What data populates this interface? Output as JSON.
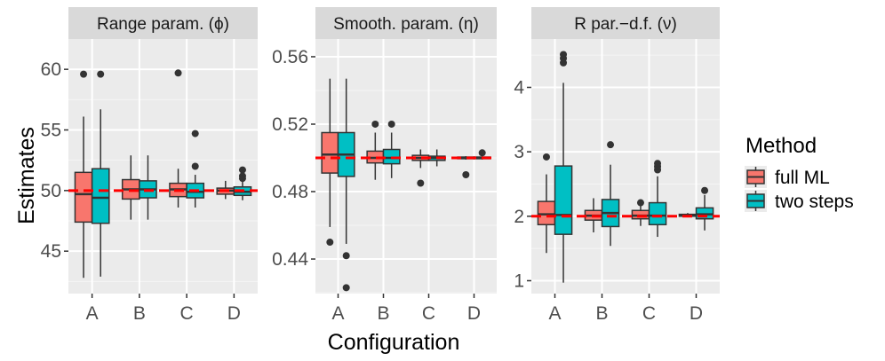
{
  "chart_data": {
    "type": "boxplot",
    "xlabel": "Configuration",
    "ylabel": "Estimates",
    "categories": [
      "A",
      "B",
      "C",
      "D"
    ],
    "legend": {
      "title": "Method",
      "position": "right",
      "entries": [
        {
          "name": "full ML",
          "color": "#F8766D"
        },
        {
          "name": "two steps",
          "color": "#00BFC4"
        }
      ]
    },
    "reference_line_color": "#FF0000",
    "panels": [
      {
        "title": "Range param. (ϕ)",
        "true_value": 50,
        "ylim": [
          41.5,
          62.5
        ],
        "yticks": [
          45,
          50,
          55,
          60
        ],
        "ytick_labels": [
          "45",
          "50",
          "55",
          "60"
        ],
        "series": [
          {
            "name": "full ML",
            "boxes": [
              {
                "cat": "A",
                "q1": 47.4,
                "median": 49.7,
                "q3": 51.5,
                "whisker_low": 42.8,
                "whisker_high": 56.1,
                "outliers": [
                  59.6
                ]
              },
              {
                "cat": "B",
                "q1": 49.3,
                "median": 50.1,
                "q3": 50.9,
                "whisker_low": 47.6,
                "whisker_high": 52.9,
                "outliers": []
              },
              {
                "cat": "C",
                "q1": 49.5,
                "median": 50.1,
                "q3": 50.6,
                "whisker_low": 48.6,
                "whisker_high": 51.8,
                "outliers": [
                  59.7
                ]
              },
              {
                "cat": "D",
                "q1": 49.7,
                "median": 50.0,
                "q3": 50.2,
                "whisker_low": 49.3,
                "whisker_high": 50.8,
                "outliers": []
              }
            ]
          },
          {
            "name": "two steps",
            "boxes": [
              {
                "cat": "A",
                "q1": 47.3,
                "median": 49.4,
                "q3": 51.8,
                "whisker_low": 42.9,
                "whisker_high": 56.7,
                "outliers": [
                  59.6
                ]
              },
              {
                "cat": "B",
                "q1": 49.4,
                "median": 50.1,
                "q3": 50.8,
                "whisker_low": 47.6,
                "whisker_high": 52.9,
                "outliers": []
              },
              {
                "cat": "C",
                "q1": 49.4,
                "median": 49.9,
                "q3": 50.6,
                "whisker_low": 48.6,
                "whisker_high": 51.3,
                "outliers": [
                  54.7,
                  52.0
                ]
              },
              {
                "cat": "D",
                "q1": 49.6,
                "median": 49.9,
                "q3": 50.3,
                "whisker_low": 49.2,
                "whisker_high": 50.8,
                "outliers": [
                  51.7,
                  51.2,
                  51.0
                ]
              }
            ]
          }
        ]
      },
      {
        "title": "Smooth. param. (η)",
        "true_value": 0.5,
        "ylim": [
          0.4195,
          0.5705
        ],
        "yticks": [
          0.44,
          0.48,
          0.52,
          0.56
        ],
        "ytick_labels": [
          "0.44",
          "0.48",
          "0.52",
          "0.56"
        ],
        "series": [
          {
            "name": "full ML",
            "boxes": [
              {
                "cat": "A",
                "q1": 0.491,
                "median": 0.502,
                "q3": 0.515,
                "whisker_low": 0.459,
                "whisker_high": 0.547,
                "outliers": [
                  0.45
                ]
              },
              {
                "cat": "B",
                "q1": 0.497,
                "median": 0.5,
                "q3": 0.504,
                "whisker_low": 0.487,
                "whisker_high": 0.515,
                "outliers": [
                  0.52
                ]
              },
              {
                "cat": "C",
                "q1": 0.4985,
                "median": 0.5,
                "q3": 0.5015,
                "whisker_low": 0.494,
                "whisker_high": 0.505,
                "outliers": [
                  0.485
                ]
              },
              {
                "cat": "D",
                "q1": 0.4995,
                "median": 0.5,
                "q3": 0.5005,
                "whisker_low": 0.499,
                "whisker_high": 0.501,
                "outliers": [
                  0.49
                ]
              }
            ]
          },
          {
            "name": "two steps",
            "boxes": [
              {
                "cat": "A",
                "q1": 0.489,
                "median": 0.502,
                "q3": 0.515,
                "whisker_low": 0.449,
                "whisker_high": 0.547,
                "outliers": [
                  0.442,
                  0.423
                ]
              },
              {
                "cat": "B",
                "q1": 0.4965,
                "median": 0.5,
                "q3": 0.505,
                "whisker_low": 0.488,
                "whisker_high": 0.515,
                "outliers": [
                  0.52
                ]
              },
              {
                "cat": "C",
                "q1": 0.4985,
                "median": 0.5,
                "q3": 0.501,
                "whisker_low": 0.495,
                "whisker_high": 0.505,
                "outliers": []
              },
              {
                "cat": "D",
                "q1": 0.4995,
                "median": 0.5,
                "q3": 0.5005,
                "whisker_low": 0.499,
                "whisker_high": 0.501,
                "outliers": [
                  0.503
                ]
              }
            ]
          }
        ]
      },
      {
        "title": "R par.−d.f. (ν)",
        "true_value": 2,
        "ylim": [
          0.8,
          4.75
        ],
        "yticks": [
          1,
          2,
          3,
          4
        ],
        "ytick_labels": [
          "1",
          "2",
          "3",
          "4"
        ],
        "series": [
          {
            "name": "full ML",
            "boxes": [
              {
                "cat": "A",
                "q1": 1.87,
                "median": 2.03,
                "q3": 2.23,
                "whisker_low": 1.43,
                "whisker_high": 2.65,
                "outliers": [
                  2.92
                ]
              },
              {
                "cat": "B",
                "q1": 1.94,
                "median": 2.01,
                "q3": 2.09,
                "whisker_low": 1.75,
                "whisker_high": 2.28,
                "outliers": []
              },
              {
                "cat": "C",
                "q1": 1.96,
                "median": 2.01,
                "q3": 2.09,
                "whisker_low": 1.85,
                "whisker_high": 2.18,
                "outliers": [
                  2.21
                ]
              },
              {
                "cat": "D",
                "q1": 2.0,
                "median": 2.01,
                "q3": 2.03,
                "whisker_low": 1.99,
                "whisker_high": 2.05,
                "outliers": []
              }
            ]
          },
          {
            "name": "two steps",
            "boxes": [
              {
                "cat": "A",
                "q1": 1.72,
                "median": 2.02,
                "q3": 2.78,
                "whisker_low": 0.97,
                "whisker_high": 4.07,
                "outliers": [
                  4.38,
                  4.45,
                  4.51
                ]
              },
              {
                "cat": "B",
                "q1": 1.84,
                "median": 2.05,
                "q3": 2.26,
                "whisker_low": 1.54,
                "whisker_high": 2.8,
                "outliers": [
                  3.11
                ]
              },
              {
                "cat": "C",
                "q1": 1.87,
                "median": 2.01,
                "q3": 2.21,
                "whisker_low": 1.68,
                "whisker_high": 2.62,
                "outliers": [
                  2.72,
                  2.77,
                  2.82
                ]
              },
              {
                "cat": "D",
                "q1": 1.96,
                "median": 2.03,
                "q3": 2.13,
                "whisker_low": 1.78,
                "whisker_high": 2.33,
                "outliers": [
                  2.4
                ]
              }
            ]
          }
        ]
      }
    ]
  }
}
